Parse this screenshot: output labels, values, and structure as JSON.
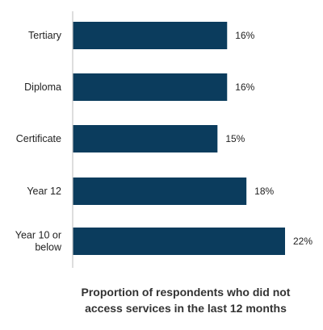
{
  "chart_data": {
    "type": "bar",
    "orientation": "horizontal",
    "categories": [
      "Tertiary",
      "Diploma",
      "Certificate",
      "Year 12",
      "Year 10 or below"
    ],
    "category_lines": [
      [
        "Tertiary"
      ],
      [
        "Diploma"
      ],
      [
        "Certificate"
      ],
      [
        "Year 12"
      ],
      [
        "Year 10 or",
        "below"
      ]
    ],
    "values": [
      16,
      16,
      15,
      18,
      22
    ],
    "value_labels": [
      "16%",
      "16%",
      "15%",
      "18%",
      "22%"
    ],
    "unit": "%",
    "xlim": [
      0,
      22
    ],
    "title_lines": [
      "Proportion of respondents who did not",
      "access services in the last 12 months"
    ],
    "grid": false,
    "legend": "none",
    "bar_color": "#0b3c5d",
    "axis_color": "#c8c8c8"
  }
}
